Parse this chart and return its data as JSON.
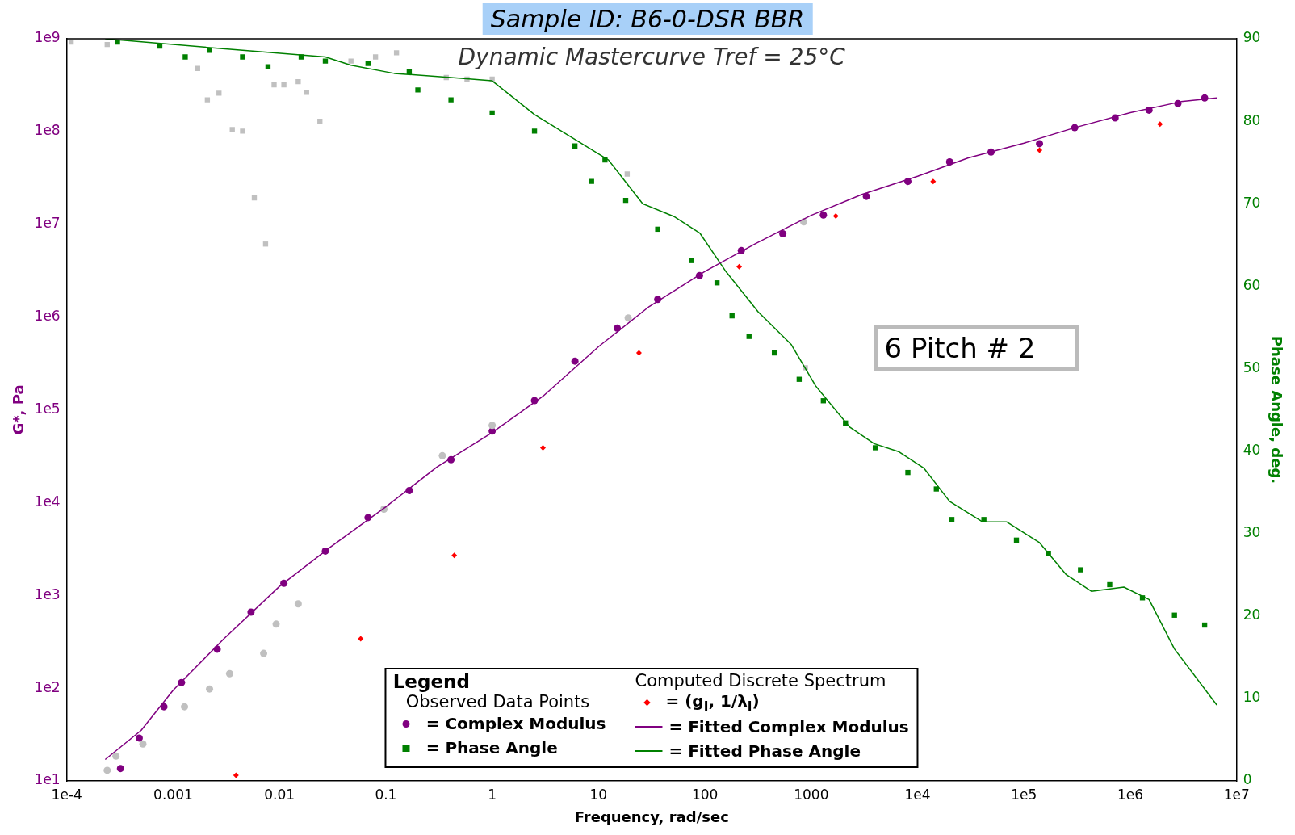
{
  "chart_data": {
    "type": "scatter",
    "title": "Sample ID: B6-0-DSR BBR",
    "subtitle": "Dynamic Mastercurve Tref = 25°C",
    "xlabel": "Frequency, rad/sec",
    "ylabel": "G*, Pa",
    "y2label": "Phase Angle, deg.",
    "legend_title": "Legend",
    "legend": "bottom",
    "log": "xy",
    "grid": false,
    "annotations": [
      "Observed Data Points",
      "Computed Discrete Spectrum",
      "6 Pitch # 2"
    ],
    "xlim": [
      0.0001,
      10000000
    ],
    "xticks": [
      {
        "value": 0.0001,
        "label": "1e-4"
      },
      0.001,
      0.01,
      0.1,
      1,
      10,
      100,
      1000,
      {
        "value": 10000,
        "label": "1e4"
      },
      {
        "value": 100000,
        "label": "1e5"
      },
      {
        "value": 1000000,
        "label": "1e6"
      },
      {
        "value": 10000000,
        "label": "1e7"
      }
    ],
    "ylim": [
      10,
      1000000000
    ],
    "yticks": [
      {
        "value": 10,
        "label": "1e1"
      },
      {
        "value": 100,
        "label": "1e2"
      },
      {
        "value": 1000,
        "label": "1e3"
      },
      {
        "value": 10000,
        "label": "1e4"
      },
      {
        "value": 100000,
        "label": "1e5"
      },
      {
        "value": 1000000,
        "label": "1e6"
      },
      {
        "value": 10000000,
        "label": "1e7"
      },
      {
        "value": 100000000,
        "label": "1e8"
      },
      {
        "value": 1000000000,
        "label": "1e9"
      }
    ],
    "y2lim": [
      0,
      90
    ],
    "y2ticks": [
      0,
      10,
      20,
      30,
      40,
      50,
      60,
      70,
      80,
      90
    ],
    "series": [
      {
        "axis": "y",
        "color": "#c0c0c0",
        "marker": "circle",
        "x": [
          0.00024,
          0.00029,
          0.00052,
          0.00128,
          0.0022,
          0.0034,
          0.0071,
          0.0093,
          0.015,
          0.096,
          0.34,
          1,
          19,
          850
        ],
        "values": [
          13,
          18.5,
          25,
          63,
          98,
          143,
          237,
          490,
          810,
          8500,
          32000,
          68000,
          980000,
          10600000
        ]
      },
      {
        "axis": "y2",
        "color": "#c0c0c0",
        "marker": "square",
        "x": [
          0.00011,
          0.00024,
          0.0017,
          0.0021,
          0.0027,
          0.0036,
          0.0045,
          0.0058,
          0.0074,
          0.0089,
          0.011,
          0.015,
          0.018,
          0.024,
          0.047,
          0.08,
          0.126,
          0.37,
          0.58,
          1,
          18.6,
          880
        ],
        "values": [
          89.6,
          89.3,
          86.4,
          82.6,
          83.4,
          79,
          78.8,
          70.7,
          65.1,
          84.4,
          84.4,
          84.8,
          83.5,
          80,
          87.3,
          87.8,
          88.3,
          85.3,
          85.1,
          85.1,
          73.6,
          50.1
        ]
      },
      {
        "name": "= Complex Modulus",
        "axis": "y",
        "color": "#800080",
        "marker": "circle",
        "x": [
          0.00032,
          0.00048,
          0.00082,
          0.0012,
          0.0026,
          0.0054,
          0.011,
          0.027,
          0.068,
          0.166,
          0.41,
          1,
          2.5,
          6,
          15,
          36,
          89,
          220,
          540,
          1300,
          3300,
          8100,
          20000,
          49000,
          140000,
          300000,
          720000,
          1500000,
          2800000,
          5000000
        ],
        "values": [
          13.6,
          29,
          63,
          115,
          263,
          660,
          1350,
          3000,
          6900,
          13500,
          29000,
          59000,
          126000,
          335000,
          760000,
          1550000,
          2800000,
          5200000,
          7900000,
          12600000,
          20000000,
          29000000,
          47000000,
          60000000,
          74000000,
          110000000,
          140000000,
          170000000,
          200000000,
          230000000
        ]
      },
      {
        "name": "= Phase Angle",
        "axis": "y2",
        "color": "#008000",
        "marker": "square",
        "x": [
          0.0003,
          0.00075,
          0.0013,
          0.0022,
          0.0045,
          0.0078,
          0.016,
          0.027,
          0.068,
          0.166,
          0.2,
          0.41,
          1,
          2.5,
          6,
          11.5,
          8.6,
          18,
          36,
          75,
          130,
          180,
          260,
          450,
          770,
          1300,
          2100,
          4000,
          8100,
          15000,
          21000,
          42000,
          85000,
          170000,
          340000,
          640000,
          1300000,
          2600000,
          5000000
        ],
        "values": [
          89.6,
          89.1,
          87.8,
          88.6,
          87.8,
          86.6,
          87.8,
          87.3,
          87,
          86,
          83.8,
          82.6,
          81,
          78.8,
          77,
          75.3,
          72.7,
          70.4,
          66.9,
          63.1,
          60.4,
          56.4,
          53.9,
          51.9,
          48.7,
          46.1,
          43.4,
          40.4,
          37.4,
          35.4,
          31.7,
          31.7,
          29.2,
          27.6,
          25.6,
          23.8,
          22.2,
          20.1,
          18.9
        ]
      },
      {
        "name": "= (g$_{i}$, 1/λ$_{i}$)",
        "axis": "y",
        "color": "#ff0000",
        "marker": "diamond",
        "x": [
          0.0039,
          0.058,
          0.44,
          3,
          24,
          210,
          1700,
          14000,
          140000,
          1900000
        ],
        "values": [
          11.5,
          340,
          2700,
          39000,
          410000,
          3500000,
          12300000,
          29000000,
          63000000,
          120000000
        ]
      },
      {
        "name": "= Fitted Complex Modulus",
        "type": "line",
        "axis": "y",
        "color": "#800080",
        "marker": "none",
        "x": [
          0.00023,
          0.0005,
          0.001,
          0.003,
          0.01,
          0.03,
          0.1,
          0.3,
          1,
          3,
          10,
          30,
          100,
          300,
          1000,
          3000,
          10000,
          30000,
          100000,
          300000,
          1000000,
          3000000,
          6500000
        ],
        "values": [
          17,
          35,
          95,
          340,
          1250,
          3300,
          9000,
          24000,
          57000,
          140000,
          480000,
          1300000,
          3100000,
          6200000,
          12500000,
          21000000,
          33000000,
          52000000,
          75000000,
          110000000,
          160000000,
          210000000,
          230000000
        ]
      },
      {
        "name": "= Fitted Phase Angle",
        "type": "line",
        "axis": "y2",
        "color": "#008000",
        "marker": "none",
        "x": [
          0.00023,
          0.0045,
          0.027,
          0.047,
          0.12,
          0.41,
          1,
          2.5,
          6,
          12.4,
          26,
          52,
          90,
          155,
          316,
          650,
          1100,
          2300,
          3900,
          6700,
          11500,
          20000,
          41000,
          69000,
          140000,
          250000,
          430000,
          870000,
          1500000,
          2600000,
          6500000
        ],
        "values": [
          90,
          88.6,
          87.8,
          86.8,
          85.8,
          85.3,
          84.9,
          80.8,
          77.8,
          75.3,
          70,
          68.4,
          66.4,
          61.9,
          56.9,
          52.9,
          47.9,
          42.9,
          40.9,
          39.9,
          37.9,
          33.9,
          31.4,
          31.4,
          28.9,
          25,
          23,
          23.5,
          22,
          16,
          9.2
        ]
      }
    ]
  }
}
